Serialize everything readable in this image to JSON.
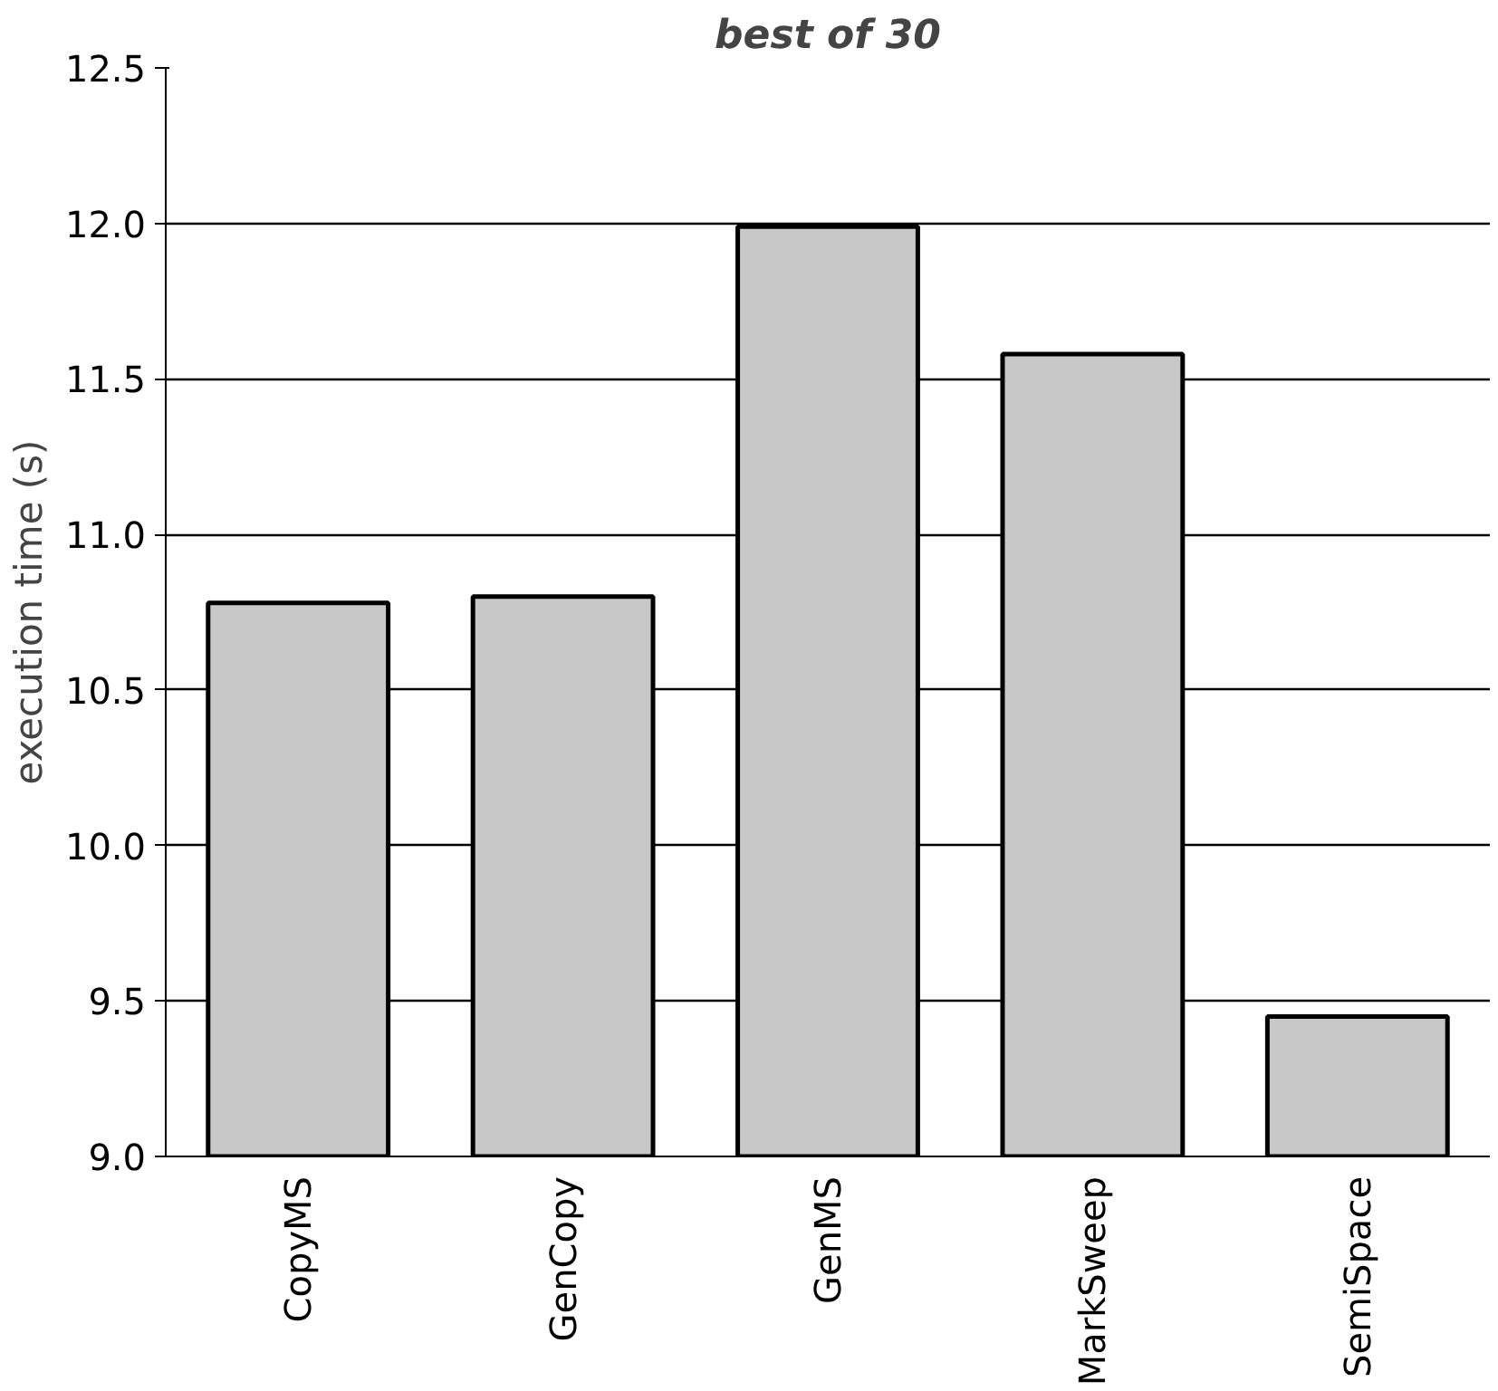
{
  "chart_data": {
    "type": "bar",
    "title": "best of 30",
    "ylabel": "execution time (s)",
    "categories": [
      "CopyMS",
      "GenCopy",
      "GenMS",
      "MarkSweep",
      "SemiSpace"
    ],
    "values": [
      10.78,
      10.8,
      11.99,
      11.58,
      9.45
    ],
    "color": "#c8c8c8",
    "ylim": [
      9.0,
      12.5
    ],
    "yticks": [
      {
        "value": 9.0,
        "label": "9.0"
      },
      {
        "value": 9.5,
        "label": "9.5"
      },
      {
        "value": 10.0,
        "label": "10.0"
      },
      {
        "value": 10.5,
        "label": "10.5"
      },
      {
        "value": 11.0,
        "label": "11.0"
      },
      {
        "value": 11.5,
        "label": "11.5"
      },
      {
        "value": 12.0,
        "label": "12.0"
      },
      {
        "value": 12.5,
        "label": "12.5"
      }
    ],
    "grid": "y"
  }
}
